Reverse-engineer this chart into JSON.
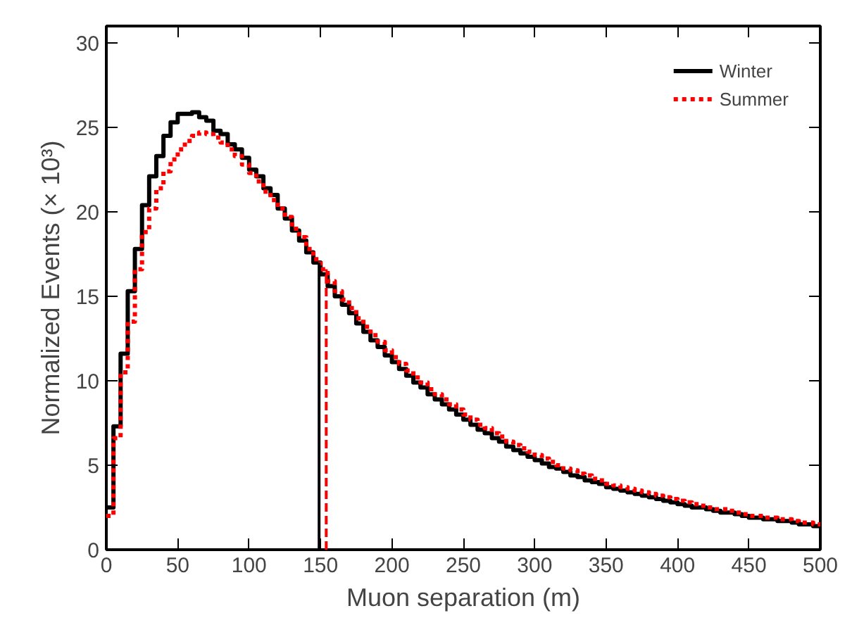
{
  "chart_data": {
    "type": "histogram",
    "xlabel": "Muon separation (m)",
    "ylabel": "Normalized Events (× 10³)",
    "bins": [
      0,
      5,
      10,
      15,
      20,
      25,
      30,
      35,
      40,
      45,
      50,
      55,
      60,
      65,
      70,
      75,
      80,
      85,
      90,
      95,
      100,
      105,
      110,
      115,
      120,
      125,
      130,
      135,
      140,
      145,
      150,
      155,
      160,
      165,
      170,
      175,
      180,
      185,
      190,
      195,
      200,
      205,
      210,
      215,
      220,
      225,
      230,
      235,
      240,
      245,
      250,
      255,
      260,
      265,
      270,
      275,
      280,
      285,
      290,
      295,
      300,
      305,
      310,
      315,
      320,
      325,
      330,
      335,
      340,
      345,
      350,
      355,
      360,
      365,
      370,
      375,
      380,
      385,
      390,
      395,
      400,
      405,
      410,
      415,
      420,
      425,
      430,
      435,
      440,
      445,
      450,
      455,
      460,
      465,
      470,
      475,
      480,
      485,
      490,
      495,
      500
    ],
    "series": [
      {
        "name": "Winter",
        "color": "#000000",
        "line_style": "solid",
        "values": [
          2.5,
          7.3,
          11.6,
          15.3,
          17.8,
          20.4,
          22.1,
          23.3,
          24.5,
          25.3,
          25.8,
          25.8,
          25.9,
          25.6,
          25.4,
          24.8,
          24.6,
          24.0,
          23.7,
          23.2,
          22.5,
          22.1,
          21.4,
          21.0,
          20.2,
          19.6,
          18.9,
          18.3,
          17.6,
          17.0,
          16.3,
          15.6,
          15.0,
          14.5,
          14.0,
          13.4,
          12.9,
          12.4,
          12.0,
          11.5,
          11.1,
          10.7,
          10.3,
          9.9,
          9.6,
          9.2,
          8.9,
          8.6,
          8.3,
          8.0,
          7.7,
          7.4,
          7.1,
          6.9,
          6.6,
          6.4,
          6.1,
          5.9,
          5.7,
          5.5,
          5.3,
          5.1,
          4.9,
          4.8,
          4.6,
          4.4,
          4.3,
          4.1,
          4.0,
          3.9,
          3.7,
          3.6,
          3.5,
          3.4,
          3.3,
          3.2,
          3.1,
          3.0,
          2.9,
          2.8,
          2.7,
          2.6,
          2.5,
          2.5,
          2.4,
          2.3,
          2.2,
          2.2,
          2.1,
          2.0,
          1.9,
          1.9,
          1.8,
          1.8,
          1.7,
          1.7,
          1.6,
          1.5,
          1.5,
          1.4
        ]
      },
      {
        "name": "Summer",
        "color": "#ff0000",
        "line_style": "dotted",
        "values": [
          2.0,
          6.6,
          10.5,
          13.5,
          16.6,
          18.8,
          20.2,
          21.4,
          22.4,
          23.1,
          23.7,
          24.2,
          24.5,
          24.7,
          24.6,
          24.4,
          24.1,
          23.7,
          23.3,
          22.8,
          22.3,
          21.8,
          21.2,
          20.7,
          20.2,
          19.7,
          19.0,
          18.5,
          17.8,
          17.2,
          16.6,
          15.9,
          15.3,
          14.8,
          14.3,
          13.7,
          13.2,
          12.7,
          12.3,
          11.8,
          11.4,
          11.0,
          10.6,
          10.2,
          9.9,
          9.5,
          9.2,
          8.9,
          8.6,
          8.3,
          8.0,
          7.7,
          7.4,
          7.2,
          6.9,
          6.7,
          6.4,
          6.2,
          6.0,
          5.8,
          5.6,
          5.4,
          5.2,
          5.0,
          4.8,
          4.7,
          4.5,
          4.4,
          4.2,
          4.1,
          3.9,
          3.8,
          3.7,
          3.6,
          3.5,
          3.4,
          3.3,
          3.2,
          3.1,
          3.0,
          2.9,
          2.8,
          2.7,
          2.6,
          2.5,
          2.4,
          2.4,
          2.3,
          2.2,
          2.1,
          2.0,
          2.0,
          1.9,
          1.9,
          1.8,
          1.8,
          1.7,
          1.6,
          1.6,
          1.5
        ]
      }
    ],
    "ref_lines": [
      {
        "axis": "x",
        "value": 149,
        "color": "#000000",
        "line_style": "solid"
      },
      {
        "axis": "x",
        "value": 154,
        "color": "#ff0000",
        "line_style": "dashed"
      }
    ],
    "xlim": [
      0,
      500
    ],
    "ylim": [
      0,
      31
    ],
    "xticks": [
      0,
      50,
      100,
      150,
      200,
      250,
      300,
      350,
      400,
      450,
      500
    ],
    "yticks": [
      0,
      5,
      10,
      15,
      20,
      25,
      30
    ],
    "grid": false,
    "legend": "top right"
  }
}
